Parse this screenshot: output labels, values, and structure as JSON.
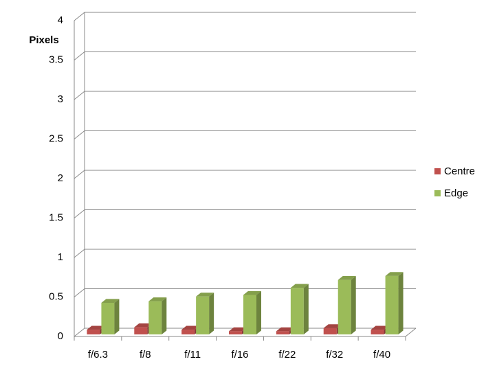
{
  "chart_data": {
    "type": "bar3d",
    "y_label": "Pixels",
    "categories": [
      "f/6.3",
      "f/8",
      "f/11",
      "f/16",
      "f/22",
      "f/32",
      "f/40"
    ],
    "series": [
      {
        "name": "Centre",
        "color": "#c0504d",
        "values": [
          0.06,
          0.09,
          0.06,
          0.04,
          0.04,
          0.08,
          0.06
        ]
      },
      {
        "name": "Edge",
        "color": "#9bbb59",
        "values": [
          0.4,
          0.42,
          0.48,
          0.5,
          0.59,
          0.69,
          0.74
        ]
      }
    ],
    "ylim": [
      0,
      4
    ],
    "yticks": [
      0,
      0.5,
      1,
      1.5,
      2,
      2.5,
      3,
      3.5,
      4
    ],
    "grid": true,
    "legend": "right"
  }
}
